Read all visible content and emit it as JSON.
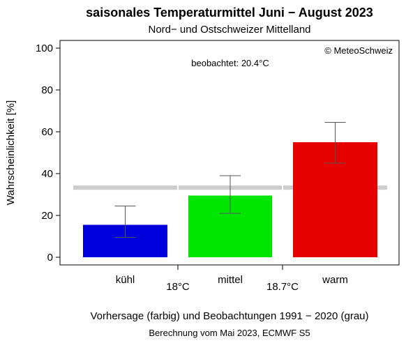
{
  "chart_data": {
    "type": "bar",
    "title": "saisonales Temperaturmittel Juni − August 2023",
    "subtitle": "Nord− und Ostschweizer Mittelland",
    "copyright": "© MeteoSchweiz",
    "annotation": "beobachtet: 20.4°C",
    "ylabel": "Wahrscheinlichkeit [%]",
    "xlabel": "Vorhersage (farbig) und Beobachtungen 1991 − 2020 (grau)",
    "footnote": "Berechnung vom Mai 2023, ECMWF S5",
    "ylim": [
      0,
      100
    ],
    "yticks": [
      0,
      20,
      40,
      60,
      80,
      100
    ],
    "categories": [
      "kühl",
      "mittel",
      "warm"
    ],
    "values": [
      15.5,
      29.5,
      55
    ],
    "error_low": [
      9.5,
      21,
      45
    ],
    "error_high": [
      24.5,
      39,
      64.5
    ],
    "bar_colors": [
      "#0000dd",
      "#00e600",
      "#e60000"
    ],
    "climatology": [
      33.3,
      33.3,
      33.3
    ],
    "climatology_color": "#cccccc",
    "thresholds": [
      "18°C",
      "18.7°C"
    ],
    "grid": false,
    "legend": "none"
  }
}
